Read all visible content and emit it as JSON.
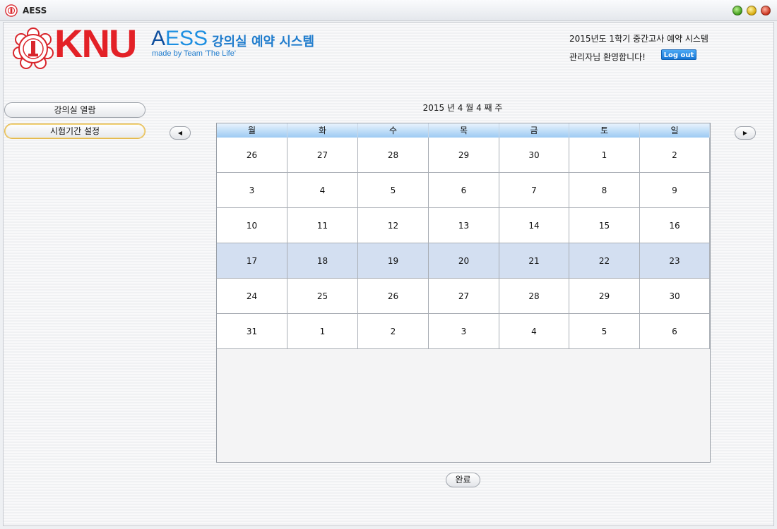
{
  "window": {
    "title": "AESS",
    "app_icon": "knu-emblem-icon"
  },
  "header": {
    "logo_knu": "KNU",
    "logo_aess_a": "A",
    "logo_aess_ess": "ESS",
    "logo_subtitle": "강의실 예약 시스템",
    "logo_made_by": "made by Team  'The Life'",
    "system_title": "2015년도 1학기 중간고사 예약 시스템",
    "welcome": "관리자님 환영합니다!",
    "logout_label": "Log out"
  },
  "sidebar": {
    "items": [
      {
        "label": "강의실 열람"
      },
      {
        "label": "시험기간 설정"
      }
    ]
  },
  "calendar": {
    "week_label": "2015 년 4 월 4 째 주",
    "prev_icon": "triangle-left-icon",
    "next_icon": "triangle-right-icon",
    "weekdays": [
      "월",
      "화",
      "수",
      "목",
      "금",
      "토",
      "일"
    ],
    "weeks": [
      [
        "26",
        "27",
        "28",
        "29",
        "30",
        "1",
        "2"
      ],
      [
        "3",
        "4",
        "5",
        "6",
        "7",
        "8",
        "9"
      ],
      [
        "10",
        "11",
        "12",
        "13",
        "14",
        "15",
        "16"
      ],
      [
        "17",
        "18",
        "19",
        "20",
        "21",
        "22",
        "23"
      ],
      [
        "24",
        "25",
        "26",
        "27",
        "28",
        "29",
        "30"
      ],
      [
        "31",
        "1",
        "2",
        "3",
        "4",
        "5",
        "6"
      ]
    ],
    "selected_week": 3,
    "selected_color": "#d3dff1"
  },
  "footer": {
    "done_label": "완료"
  },
  "colors": {
    "brand_red": "#e32127",
    "brand_blue": "#1d8fe1",
    "logout_blue": "#1676d6"
  }
}
